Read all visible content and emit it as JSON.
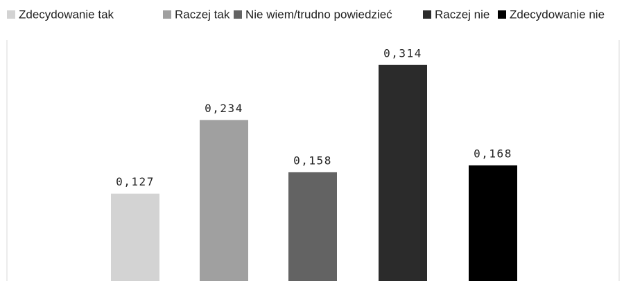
{
  "chart_data": {
    "type": "bar",
    "series": [
      {
        "name": "Zdecydowanie tak",
        "color": "#d3d3d3",
        "values": [
          0.127
        ],
        "value_labels": [
          "0,127"
        ]
      },
      {
        "name": "Raczej tak",
        "color": "#a0a0a0",
        "values": [
          0.234
        ],
        "value_labels": [
          "0,234"
        ]
      },
      {
        "name": "Nie wiem/trudno powiedzieć",
        "color": "#636363",
        "values": [
          0.158
        ],
        "value_labels": [
          "0,158"
        ]
      },
      {
        "name": "Raczej nie",
        "color": "#2b2b2b",
        "values": [
          0.314
        ],
        "value_labels": [
          "0,314"
        ]
      },
      {
        "name": "Zdecydowanie nie",
        "color": "#000000",
        "values": [
          0.168
        ],
        "value_labels": [
          "0,168"
        ]
      }
    ],
    "ylim": [
      0,
      0.35
    ],
    "legend": "top"
  }
}
